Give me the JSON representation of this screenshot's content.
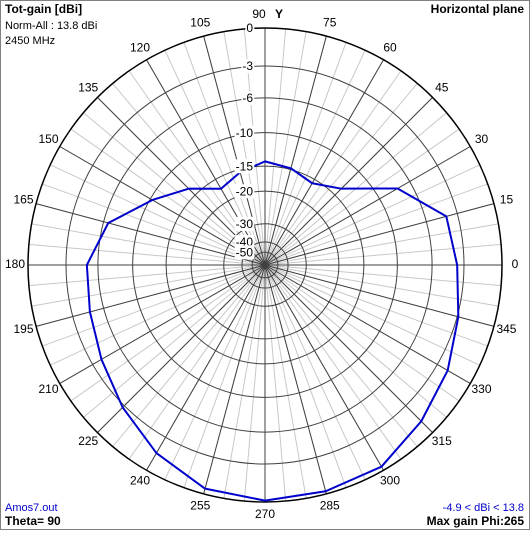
{
  "chart_data": {
    "type": "polar",
    "title": "Tot-gain [dBi]",
    "subtitle": "Norm-All : 13.8 dBi",
    "frequency": "2450 MHz",
    "plane": "Horizontal plane",
    "axis_label": "Y",
    "file": "Amos7.out",
    "theta": "Theta= 90",
    "range_note": "-4.9 < dBi < 13.8",
    "max_gain": "Max gain Phi:265",
    "rticks": [
      0,
      -3,
      -6,
      -10,
      -15,
      -20,
      -30,
      -40,
      -50
    ],
    "angle_ticks": [
      0,
      15,
      30,
      45,
      60,
      75,
      90,
      105,
      120,
      135,
      150,
      165,
      180,
      195,
      210,
      225,
      240,
      255,
      270,
      285,
      300,
      315,
      330,
      345
    ],
    "series": [
      {
        "name": "Tot-gain",
        "color": "#0000cc",
        "angles": [
          0,
          15,
          30,
          45,
          60,
          75,
          90,
          105,
          120,
          135,
          150,
          165,
          180,
          195,
          210,
          225,
          240,
          255,
          270,
          285,
          300,
          315,
          330,
          345
        ],
        "values": [
          -3.6,
          -4.0,
          -7.5,
          -13.5,
          -15.8,
          -14.8,
          -14.2,
          -15.5,
          -17.0,
          -13.5,
          -10.3,
          -6.5,
          -4.9,
          -4.6,
          -3.9,
          -2.8,
          -1.5,
          -0.4,
          -0.1,
          -0.2,
          -0.3,
          -1.2,
          -2.0,
          -2.9
        ]
      }
    ]
  }
}
